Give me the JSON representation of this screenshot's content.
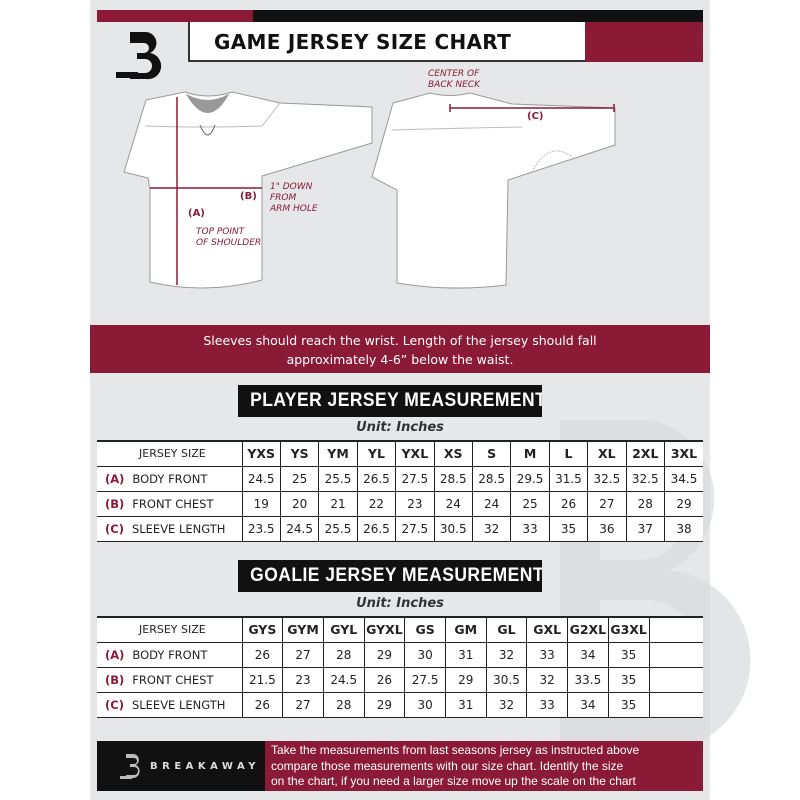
{
  "header": {
    "title": "GAME JERSEY SIZE CHART",
    "logo_text": "B"
  },
  "diagram": {
    "label_a": "(A)",
    "label_a_note": [
      "TOP POINT",
      "OF SHOULDER"
    ],
    "label_b": "(B)",
    "label_b_note": [
      "1\" DOWN",
      "FROM",
      "ARM HOLE"
    ],
    "label_c": "(C)",
    "label_c_note": [
      "CENTER OF",
      "BACK NECK"
    ]
  },
  "banner": {
    "line1": "Sleeves should reach the wrist. Length of the jersey should fall",
    "line2": "approximately 4-6” below the waist."
  },
  "player": {
    "title": "PLAYER JERSEY MEASUREMENTS",
    "unit": "Unit: Inches",
    "header_label": "JERSEY SIZE",
    "sizes": [
      "YXS",
      "YS",
      "YM",
      "YL",
      "YXL",
      "XS",
      "S",
      "M",
      "L",
      "XL",
      "2XL",
      "3XL"
    ],
    "rows": [
      {
        "key": "(A)",
        "label": "BODY FRONT",
        "values": [
          "24.5",
          "25",
          "25.5",
          "26.5",
          "27.5",
          "28.5",
          "28.5",
          "29.5",
          "31.5",
          "32.5",
          "32.5",
          "34.5"
        ]
      },
      {
        "key": "(B)",
        "label": "FRONT CHEST",
        "values": [
          "19",
          "20",
          "21",
          "22",
          "23",
          "24",
          "24",
          "25",
          "26",
          "27",
          "28",
          "29"
        ]
      },
      {
        "key": "(C)",
        "label": "SLEEVE LENGTH",
        "values": [
          "23.5",
          "24.5",
          "25.5",
          "26.5",
          "27.5",
          "30.5",
          "32",
          "33",
          "35",
          "36",
          "37",
          "38"
        ]
      }
    ]
  },
  "goalie": {
    "title": "GOALIE JERSEY MEASUREMENTS",
    "unit": "Unit: Inches",
    "header_label": "JERSEY SIZE",
    "sizes": [
      "GYS",
      "GYM",
      "GYL",
      "GYXL",
      "GS",
      "GM",
      "GL",
      "GXL",
      "G2XL",
      "G3XL"
    ],
    "rows": [
      {
        "key": "(A)",
        "label": "BODY FRONT",
        "values": [
          "26",
          "27",
          "28",
          "29",
          "30",
          "31",
          "32",
          "33",
          "34",
          "35"
        ]
      },
      {
        "key": "(B)",
        "label": "FRONT CHEST",
        "values": [
          "21.5",
          "23",
          "24.5",
          "26",
          "27.5",
          "29",
          "30.5",
          "32",
          "33.5",
          "35"
        ]
      },
      {
        "key": "(C)",
        "label": "SLEEVE LENGTH",
        "values": [
          "26",
          "27",
          "28",
          "29",
          "30",
          "31",
          "32",
          "33",
          "34",
          "35"
        ]
      }
    ]
  },
  "footer": {
    "brand": "BREAKAWAY",
    "lines": [
      "Take the measurements from last seasons jersey as instructed above",
      "compare those measurements  with our size chart. Identify the size",
      "on the chart, if you need a larger size move up the scale on the chart"
    ]
  },
  "colors": {
    "maroon": "#8b1a36",
    "black": "#111111",
    "panel": "#e6e7e8"
  }
}
